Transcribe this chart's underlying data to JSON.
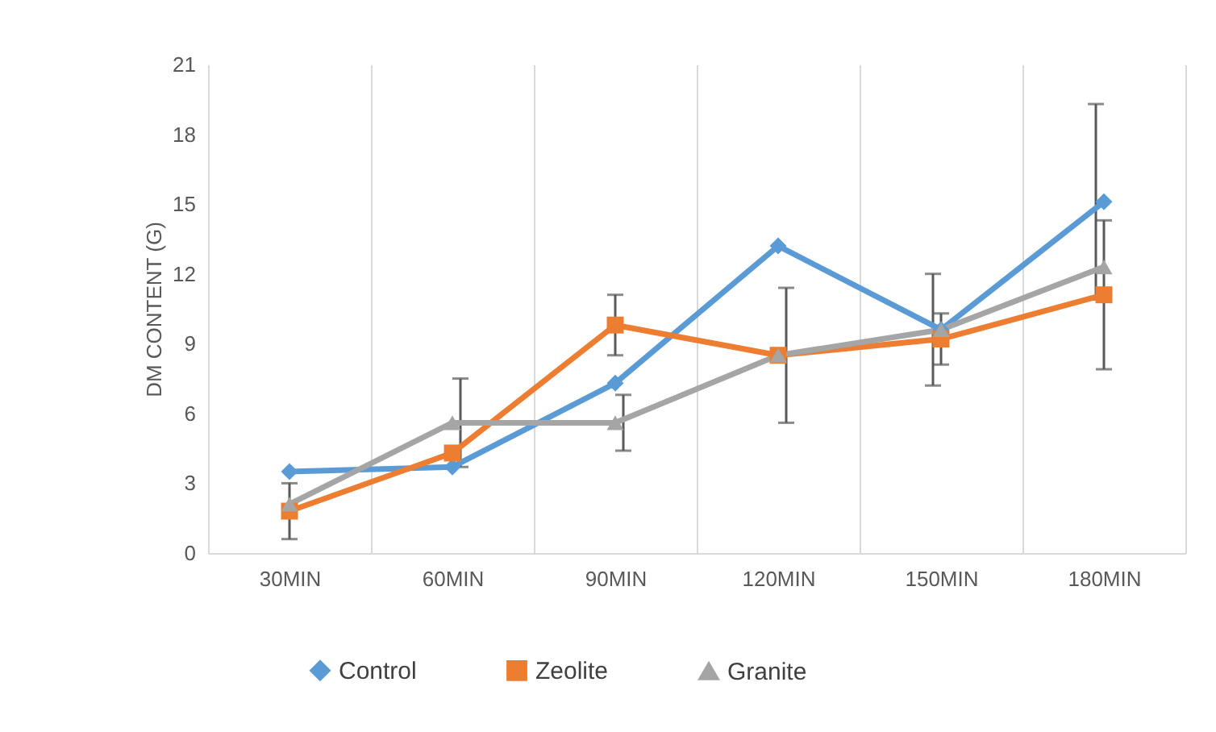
{
  "chart_data": {
    "type": "line",
    "ylabel": "DM CONTENT (G)",
    "categories": [
      "30MIN",
      "60MIN",
      "90MIN",
      "120MIN",
      "150MIN",
      "180MIN"
    ],
    "series": [
      {
        "name": "Control",
        "color": "#5b9bd5",
        "marker": "diamond",
        "values": [
          3.5,
          3.7,
          7.3,
          13.2,
          9.6,
          15.1
        ],
        "errors": [
          null,
          null,
          null,
          null,
          2.4,
          4.2
        ]
      },
      {
        "name": "Zeolite",
        "color": "#ed7d31",
        "marker": "square",
        "values": [
          1.8,
          4.3,
          9.8,
          8.5,
          9.2,
          11.1
        ],
        "errors": [
          1.2,
          null,
          1.3,
          null,
          1.1,
          3.2
        ]
      },
      {
        "name": "Granite",
        "color": "#a5a5a5",
        "marker": "triangle",
        "values": [
          2.1,
          5.6,
          5.6,
          8.5,
          9.6,
          12.3
        ],
        "errors": [
          null,
          1.9,
          1.2,
          2.9,
          null,
          null
        ]
      }
    ],
    "ylim": [
      0,
      21
    ],
    "yticks": [
      0,
      3,
      6,
      9,
      12,
      15,
      18,
      21
    ],
    "grid": "x",
    "legend": "bottom",
    "line_style": "solid"
  }
}
